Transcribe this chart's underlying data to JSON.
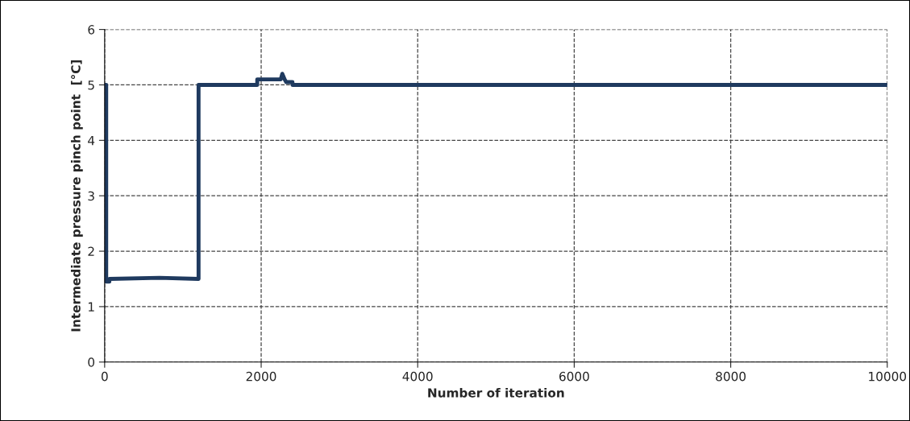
{
  "chart_data": {
    "type": "line",
    "xlabel": "Number of iteration",
    "ylabel": "Intermediate pressure pinch point  [°C]",
    "series": [
      {
        "color": "#1f3a5f",
        "x": [
          0,
          20,
          20,
          60,
          60,
          700,
          1200,
          1200,
          1950,
          1950,
          2250,
          2270,
          2300,
          2320,
          2330,
          2400,
          2400,
          4000,
          10000
        ],
        "values": [
          5.0,
          5.0,
          1.45,
          1.45,
          1.5,
          1.52,
          1.5,
          5.0,
          5.0,
          5.1,
          5.1,
          5.2,
          5.1,
          5.05,
          5.05,
          5.05,
          5.0,
          5.0,
          5.0
        ]
      }
    ],
    "xlim": [
      0,
      10000
    ],
    "xticks": [
      0,
      2000,
      4000,
      6000,
      8000,
      10000
    ],
    "ylim": [
      0,
      6
    ],
    "yticks": [
      0,
      1,
      2,
      3,
      4,
      5,
      6
    ],
    "grid": true,
    "line_style": "solid",
    "marker": "none"
  }
}
